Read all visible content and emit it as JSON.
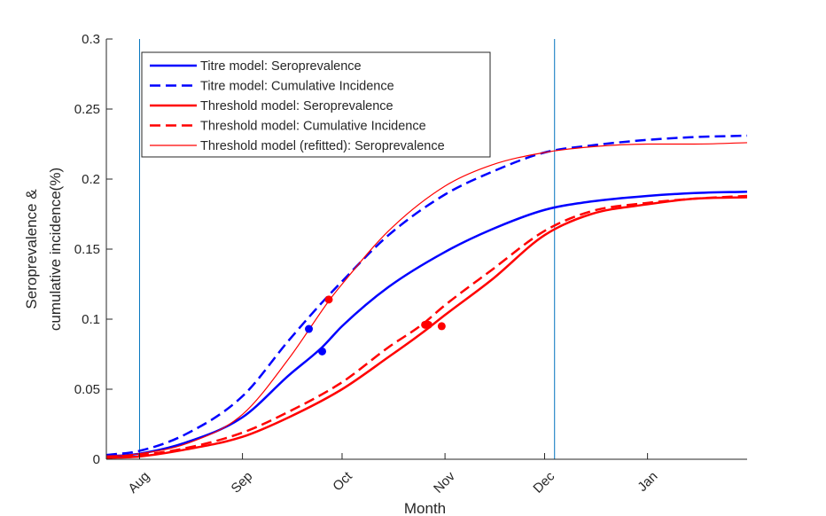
{
  "chart_data": {
    "type": "line",
    "xlabel": "Month",
    "ylabel_lines": [
      "Seroprevalence &",
      "cumulative incidence(%)"
    ],
    "ylim": [
      0,
      0.3
    ],
    "y_ticks": [
      0,
      0.05,
      0.1,
      0.15,
      0.2,
      0.25,
      0.3
    ],
    "y_tick_labels": [
      "0",
      "0.05",
      "0.1",
      "0.15",
      "0.2",
      "0.25",
      "0.3"
    ],
    "xlim": [
      "2020-07-22",
      "2021-01-31"
    ],
    "x_ticks": [
      "2020-08-01",
      "2020-09-01",
      "2020-10-01",
      "2020-11-01",
      "2020-12-01",
      "2021-01-01"
    ],
    "x_tick_labels": [
      "Aug",
      "Sep",
      "Oct",
      "Nov",
      "Dec",
      "Jan"
    ],
    "vertical_lines": [
      "2020-08-01",
      "2020-12-04"
    ],
    "vertical_line_color": "#0072BD",
    "legend_position": "upper-left",
    "series": [
      {
        "name": "Titre model: Seroprevalence",
        "color": "#0000FF",
        "style": "solid",
        "width": 2.5,
        "x": [
          "2020-07-22",
          "2020-08-01",
          "2020-08-15",
          "2020-09-01",
          "2020-09-15",
          "2020-09-25",
          "2020-10-01",
          "2020-10-15",
          "2020-11-01",
          "2020-11-15",
          "2020-12-01",
          "2020-12-15",
          "2021-01-01",
          "2021-01-15",
          "2021-01-31"
        ],
        "y": [
          0.002,
          0.004,
          0.012,
          0.03,
          0.06,
          0.08,
          0.095,
          0.123,
          0.148,
          0.164,
          0.178,
          0.184,
          0.188,
          0.19,
          0.191
        ]
      },
      {
        "name": "Titre model: Cumulative Incidence",
        "color": "#0000FF",
        "style": "dashed",
        "width": 2.5,
        "x": [
          "2020-07-22",
          "2020-08-01",
          "2020-08-15",
          "2020-09-01",
          "2020-09-15",
          "2020-09-25",
          "2020-10-01",
          "2020-10-15",
          "2020-11-01",
          "2020-11-15",
          "2020-12-01",
          "2020-12-15",
          "2021-01-01",
          "2021-01-15",
          "2021-01-31"
        ],
        "y": [
          0.003,
          0.006,
          0.018,
          0.045,
          0.085,
          0.112,
          0.127,
          0.16,
          0.189,
          0.205,
          0.219,
          0.224,
          0.228,
          0.23,
          0.231
        ]
      },
      {
        "name": "Threshold model: Seroprevalence",
        "color": "#FF0000",
        "style": "solid",
        "width": 2.5,
        "x": [
          "2020-07-22",
          "2020-08-01",
          "2020-08-15",
          "2020-09-01",
          "2020-09-15",
          "2020-10-01",
          "2020-10-15",
          "2020-10-25",
          "2020-11-01",
          "2020-11-15",
          "2020-12-01",
          "2020-12-15",
          "2021-01-01",
          "2021-01-15",
          "2021-01-31"
        ],
        "y": [
          0.001,
          0.002,
          0.007,
          0.016,
          0.03,
          0.05,
          0.073,
          0.09,
          0.103,
          0.128,
          0.16,
          0.175,
          0.182,
          0.186,
          0.187
        ]
      },
      {
        "name": "Threshold model: Cumulative Incidence",
        "color": "#FF0000",
        "style": "dashed",
        "width": 2.5,
        "x": [
          "2020-07-22",
          "2020-08-01",
          "2020-08-15",
          "2020-09-01",
          "2020-09-15",
          "2020-10-01",
          "2020-10-15",
          "2020-10-25",
          "2020-11-01",
          "2020-11-15",
          "2020-12-01",
          "2020-12-15",
          "2021-01-01",
          "2021-01-15",
          "2021-01-31"
        ],
        "y": [
          0.002,
          0.003,
          0.008,
          0.019,
          0.034,
          0.055,
          0.08,
          0.096,
          0.11,
          0.135,
          0.163,
          0.177,
          0.183,
          0.186,
          0.188
        ]
      },
      {
        "name": "Threshold model (refitted): Seroprevalence",
        "color": "#FF0000",
        "style": "solid",
        "width": 1.2,
        "x": [
          "2020-07-22",
          "2020-08-01",
          "2020-08-15",
          "2020-09-01",
          "2020-09-15",
          "2020-09-27",
          "2020-10-01",
          "2020-10-15",
          "2020-11-01",
          "2020-11-15",
          "2020-12-01",
          "2020-12-15",
          "2021-01-01",
          "2021-01-15",
          "2021-01-31"
        ],
        "y": [
          0.002,
          0.004,
          0.011,
          0.032,
          0.072,
          0.113,
          0.125,
          0.163,
          0.195,
          0.21,
          0.219,
          0.223,
          0.225,
          0.225,
          0.226
        ]
      }
    ],
    "markers": [
      {
        "x": "2020-09-21",
        "y": 0.093,
        "color": "#0000FF"
      },
      {
        "x": "2020-09-25",
        "y": 0.077,
        "color": "#0000FF"
      },
      {
        "x": "2020-09-27",
        "y": 0.114,
        "color": "#FF0000"
      },
      {
        "x": "2020-10-26",
        "y": 0.096,
        "color": "#FF0000"
      },
      {
        "x": "2020-10-27",
        "y": 0.096,
        "color": "#FF0000"
      },
      {
        "x": "2020-10-31",
        "y": 0.095,
        "color": "#FF0000"
      }
    ]
  }
}
